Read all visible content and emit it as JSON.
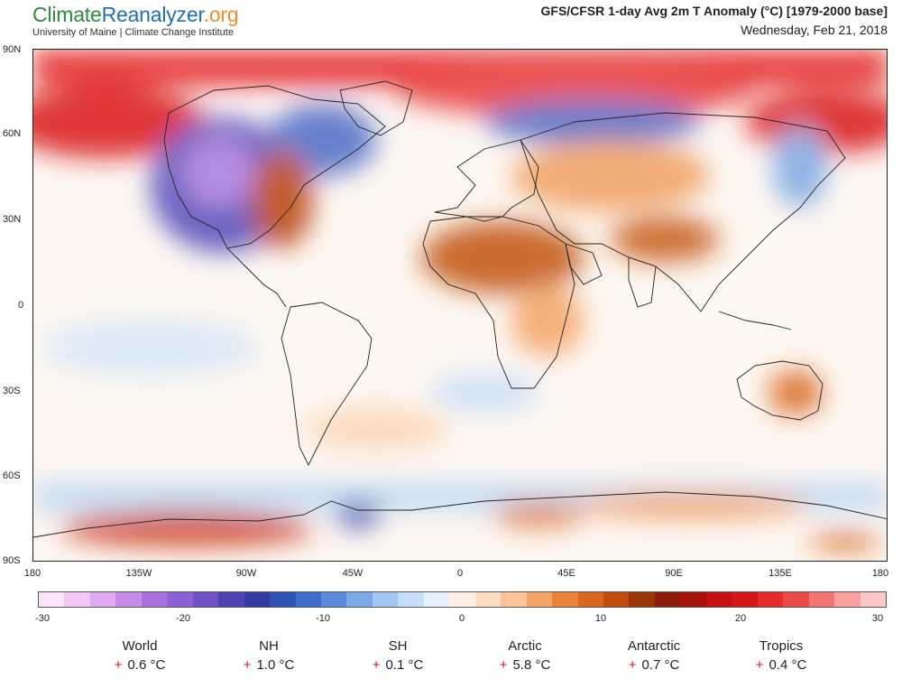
{
  "brand": {
    "part1": "Climate",
    "part2": "Reanalyzer",
    "part3": ".org",
    "subtitle": "University of Maine | Climate Change Institute"
  },
  "title": "GFS/CFSR 1-day Avg 2m T Anomaly (°C) [1979-2000 base]",
  "date": "Wednesday, Feb 21, 2018",
  "lat_labels": [
    "90N",
    "60N",
    "30N",
    "0",
    "30S",
    "60S",
    "90S"
  ],
  "lon_labels": [
    "180",
    "135W",
    "90W",
    "45W",
    "0",
    "45E",
    "90E",
    "135E",
    "180"
  ],
  "colorbar": {
    "labels": [
      "-30",
      "-20",
      "-10",
      "0",
      "10",
      "20",
      "30"
    ],
    "colors": [
      "#fbe6fb",
      "#f1c9f4",
      "#e0a8ef",
      "#c98be8",
      "#a971de",
      "#8d60d5",
      "#6e50c7",
      "#4c42b4",
      "#333aa3",
      "#2f52b5",
      "#3c6dca",
      "#5a8ad7",
      "#7ba8e3",
      "#a2c6ef",
      "#c6def7",
      "#e6f1fb",
      "#fdf0e6",
      "#fcdcc3",
      "#f9c396",
      "#f4a466",
      "#ea843a",
      "#d8661c",
      "#bf4c0c",
      "#9a3608",
      "#8a1a0a",
      "#a8120d",
      "#c21010",
      "#d61616",
      "#e52a2a",
      "#ec4b4b",
      "#f27474",
      "#f6a0a0",
      "#fac8c8"
    ]
  },
  "stats": [
    {
      "name": "World",
      "sign": "+",
      "value": "0.6 °C"
    },
    {
      "name": "NH",
      "sign": "+",
      "value": "1.0 °C"
    },
    {
      "name": "SH",
      "sign": "+",
      "value": "0.1 °C"
    },
    {
      "name": "Arctic",
      "sign": "+",
      "value": "5.8 °C"
    },
    {
      "name": "Antarctic",
      "sign": "+",
      "value": "0.7 °C"
    },
    {
      "name": "Tropics",
      "sign": "+",
      "value": "0.4 °C"
    }
  ]
}
